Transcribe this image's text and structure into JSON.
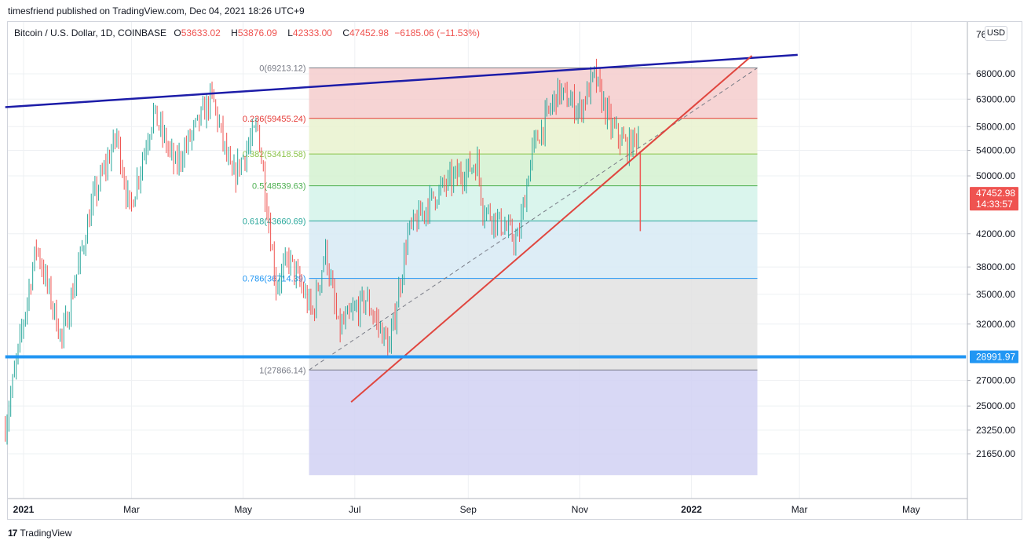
{
  "header": {
    "title": "timesfriend published on TradingView.com, Dec 04, 2021 18:26 UTC+9"
  },
  "legend": {
    "symbol": "Bitcoin / U.S. Dollar, 1D, COINBASE",
    "open_label": "O",
    "open": "53633.02",
    "high_label": "H",
    "high": "53876.09",
    "low_label": "L",
    "low": "42333.00",
    "close_label": "C",
    "close": "47452.98",
    "change": "−6185.06 (−11.53%)"
  },
  "currency_badge": "USD",
  "footer": {
    "brand": "TradingView",
    "logo": "17"
  },
  "colors": {
    "accent_red": "#ef5350",
    "accent_green": "#26a69a",
    "channel_blue": "#1c1ca8",
    "support_blue": "#2196f3",
    "trend_red": "#e0463f"
  },
  "chart_data": {
    "type": "candlestick",
    "symbol": "BTCUSD",
    "timeframe": "1D",
    "y_scale": "log",
    "ylim": [
      20300,
      77000
    ],
    "y_ticks": [
      {
        "value": 68000,
        "label": "68000.00"
      },
      {
        "value": 63000,
        "label": "63000.00"
      },
      {
        "value": 58000,
        "label": "58000.00"
      },
      {
        "value": 54000,
        "label": "54000.00"
      },
      {
        "value": 50000,
        "label": "50000.00"
      },
      {
        "value": 42000,
        "label": "42000.00"
      },
      {
        "value": 38000,
        "label": "38000.00"
      },
      {
        "value": 35000,
        "label": "35000.00"
      },
      {
        "value": 32000,
        "label": "32000.00"
      },
      {
        "value": 27000,
        "label": "27000.00"
      },
      {
        "value": 25000,
        "label": "25000.00"
      },
      {
        "value": 23250,
        "label": "23250.00"
      },
      {
        "value": 21650,
        "label": "21650.00"
      }
    ],
    "y_top_partial_label": "76",
    "x_ticks": [
      {
        "date": "2021-01-01",
        "label": "2021"
      },
      {
        "date": "2021-03-01",
        "label": "Mar"
      },
      {
        "date": "2021-05-01",
        "label": "May"
      },
      {
        "date": "2021-07-01",
        "label": "Jul"
      },
      {
        "date": "2021-09-01",
        "label": "Sep"
      },
      {
        "date": "2021-11-01",
        "label": "Nov"
      },
      {
        "date": "2022-01-01",
        "label": "2022"
      },
      {
        "date": "2022-03-01",
        "label": "Mar"
      },
      {
        "date": "2022-05-01",
        "label": "May"
      }
    ],
    "price_path": [
      [
        "2020-12-22",
        23500
      ],
      [
        "2021-01-08",
        40500
      ],
      [
        "2021-01-22",
        30500
      ],
      [
        "2021-02-08",
        46500
      ],
      [
        "2021-02-21",
        56500
      ],
      [
        "2021-02-28",
        45000
      ],
      [
        "2021-03-13",
        60500
      ],
      [
        "2021-03-25",
        51500
      ],
      [
        "2021-04-14",
        63500
      ],
      [
        "2021-04-25",
        49500
      ],
      [
        "2021-05-09",
        58000
      ],
      [
        "2021-05-19",
        36000
      ],
      [
        "2021-05-26",
        39000
      ],
      [
        "2021-06-08",
        33000
      ],
      [
        "2021-06-15",
        40000
      ],
      [
        "2021-06-22",
        31500
      ],
      [
        "2021-07-07",
        34500
      ],
      [
        "2021-07-20",
        29800
      ],
      [
        "2021-07-30",
        42000
      ],
      [
        "2021-08-13",
        47000
      ],
      [
        "2021-08-23",
        49500
      ],
      [
        "2021-09-06",
        52000
      ],
      [
        "2021-09-09",
        45500
      ],
      [
        "2021-09-20",
        43000
      ],
      [
        "2021-09-28",
        41000
      ],
      [
        "2021-10-06",
        54000
      ],
      [
        "2021-10-20",
        64500
      ],
      [
        "2021-11-01",
        61000
      ],
      [
        "2021-11-09",
        67500
      ],
      [
        "2021-11-18",
        58000
      ],
      [
        "2021-11-27",
        54500
      ],
      [
        "2021-12-03",
        56500
      ],
      [
        "2021-12-04",
        47452.98
      ]
    ],
    "last_candle": {
      "date": "2021-12-04",
      "open": 53633.02,
      "high": 53876.09,
      "low": 42333.0,
      "close": 47452.98
    },
    "fibonacci": {
      "start": {
        "date": "2021-06-06"
      },
      "end": {
        "date": "2022-02-06"
      },
      "levels": [
        {
          "ratio": "0",
          "price": 69213.12,
          "label": "0(69213.12)",
          "line_color": "#787b86",
          "fill": "#f4cccc"
        },
        {
          "ratio": "0.236",
          "price": 59455.24,
          "label": "0.236(59455.24)",
          "line_color": "#e53935",
          "fill": "#e9f2cf"
        },
        {
          "ratio": "0.382",
          "price": 53418.58,
          "label": "0.382(53418.58)",
          "line_color": "#8bc34a",
          "fill": "#d3f1d0"
        },
        {
          "ratio": "0.5",
          "price": 48539.63,
          "label": "0.5(48539.63)",
          "line_color": "#4caf50",
          "fill": "#d4f3ea"
        },
        {
          "ratio": "0.618",
          "price": 43660.69,
          "label": "0.618(43660.69)",
          "line_color": "#26a69a",
          "fill": "#d7eaf4"
        },
        {
          "ratio": "0.786",
          "price": 36714.39,
          "label": "0.786(36714.39)",
          "line_color": "#2196f3",
          "fill": "#e2e2e2"
        },
        {
          "ratio": "1",
          "price": 27866.14,
          "label": "1(27866.14)",
          "line_color": "#787b86",
          "fill": "#d1d1f3"
        }
      ],
      "bottom_fill_to": 20300,
      "trend_dashed": {
        "from": {
          "date": "2021-06-06",
          "price": 27866.14
        },
        "to": {
          "date": "2022-02-06",
          "price": 69213.12
        }
      }
    },
    "lines": [
      {
        "name": "upper-channel",
        "color": "#1c1ca8",
        "width": 2.5,
        "from": {
          "date": "2020-12-22",
          "price": 61500
        },
        "to": {
          "date": "2022-02-28",
          "price": 72000
        }
      },
      {
        "name": "ascending-support",
        "color": "#e0463f",
        "width": 2,
        "from": {
          "date": "2021-06-29",
          "price": 25300
        },
        "to": {
          "date": "2022-02-03",
          "price": 71800
        }
      },
      {
        "name": "horizontal-support",
        "color": "#2196f3",
        "width": 4,
        "from": {
          "date": "2020-12-22",
          "price": 28991.97
        },
        "to": {
          "date": "2022-05-31",
          "price": 28991.97
        }
      }
    ],
    "price_labels": [
      {
        "price": 47452.98,
        "label": "47452.98",
        "sublabel": "14:33:57",
        "color": "#ef5350"
      },
      {
        "price": 28991.97,
        "label": "28991.97",
        "color": "#2196f3"
      }
    ]
  }
}
